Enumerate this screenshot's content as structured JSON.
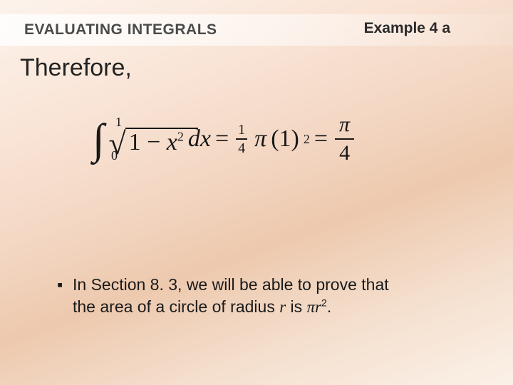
{
  "header": {
    "section_title": "EVALUATING INTEGRALS",
    "example_label": "Example 4 a"
  },
  "lead": "Therefore,",
  "equation": {
    "integral_upper": "1",
    "integral_lower": "0",
    "radicand_left": "1 − ",
    "radicand_var": "x",
    "radicand_exp": "2",
    "dx": " dx",
    "eq1": " = ",
    "frac1_num": "1",
    "frac1_den": "4",
    "pi": "π",
    "paren": "(1)",
    "paren_exp": "2",
    "eq2": " = ",
    "frac2_num": "π",
    "frac2_den": "4"
  },
  "bullet": {
    "marker": "▪",
    "line1": "In Section 8. 3, we will be able to prove that",
    "line2_a": "the area of a circle of radius ",
    "line2_r": "r",
    "line2_b": " is ",
    "line2_pi": "π",
    "line2_rv": "r",
    "line2_exp": "2",
    "line2_end": "."
  },
  "colors": {
    "text_dark": "#1a1a1a",
    "header_grey": "#4a4a4a"
  }
}
